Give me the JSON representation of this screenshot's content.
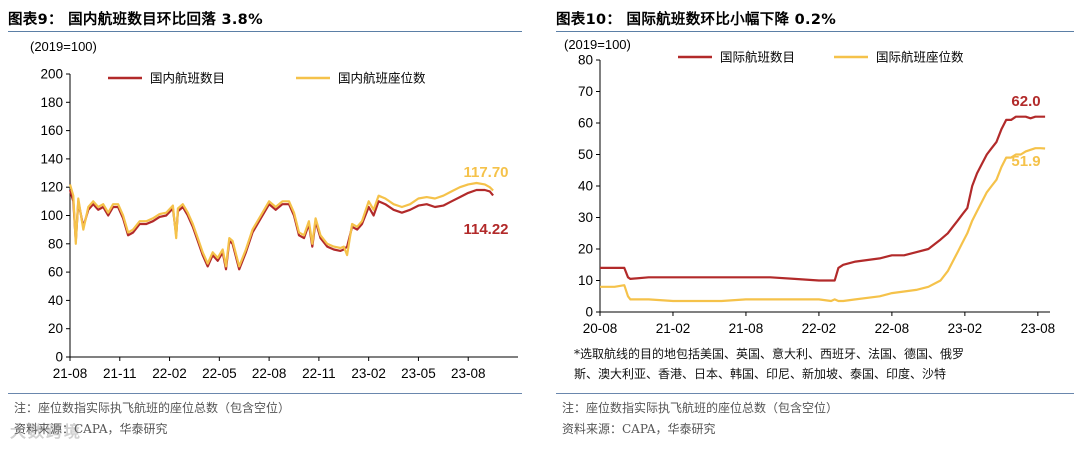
{
  "left": {
    "title": "图表9： 国内航班数目环比回落 3.8%",
    "note": "注：座位数指实际执飞航班的座位总数（包含空位）",
    "source": "资料来源：CAPA，华泰研究"
  },
  "right": {
    "title": "图表10： 国际航班数环比小幅下降 0.2%",
    "footnote_line1": "*选取航线的目的地包括美国、英国、意大利、西班牙、法国、德国、俄罗",
    "footnote_line2": "斯、澳大利亚、香港、日本、韩国、印尼、新加坡、泰国、印度、沙特",
    "note": "注：座位数指实际执飞航班的座位总数（包含空位）",
    "source": "资料来源：CAPA，华泰研究"
  },
  "watermark": "大数跨境",
  "colors": {
    "dark_red": "#b22a2a",
    "yellow": "#f5c24a",
    "rule_blue": "#5b7fa6"
  },
  "chart_data": [
    {
      "type": "line",
      "unit_label": "(2019=100)",
      "ylim": [
        0,
        200
      ],
      "yticks": [
        0,
        20,
        40,
        60,
        80,
        100,
        120,
        140,
        160,
        180,
        200
      ],
      "xlim": [
        0,
        27
      ],
      "x_tick_labels": [
        "21-08",
        "21-11",
        "22-02",
        "22-05",
        "22-08",
        "22-11",
        "23-02",
        "23-05",
        "23-08"
      ],
      "x_tick_positions": [
        0,
        3,
        6,
        9,
        12,
        15,
        18,
        21,
        24
      ],
      "grid": false,
      "legend_position": "top",
      "annotations": [
        {
          "text": "117.70",
          "series": "国内航班座位数"
        },
        {
          "text": "114.22",
          "series": "国内航班数目"
        }
      ],
      "series": [
        {
          "name": "国内航班数目",
          "color": "#b22a2a",
          "x": [
            0,
            0.2,
            0.35,
            0.5,
            0.8,
            1.1,
            1.4,
            1.7,
            2.0,
            2.3,
            2.6,
            2.9,
            3.2,
            3.5,
            3.8,
            4.2,
            4.6,
            5.0,
            5.4,
            5.8,
            6.2,
            6.4,
            6.5,
            6.8,
            7.1,
            7.4,
            7.7,
            8.0,
            8.3,
            8.6,
            8.9,
            9.2,
            9.4,
            9.6,
            9.8,
            10.2,
            10.6,
            11.0,
            11.5,
            12.0,
            12.4,
            12.8,
            13.2,
            13.5,
            13.8,
            14.1,
            14.4,
            14.6,
            14.8,
            15.1,
            15.5,
            15.9,
            16.3,
            16.5,
            16.7,
            17.0,
            17.3,
            17.6,
            18.0,
            18.3,
            18.6,
            19.0,
            19.5,
            20.0,
            20.5,
            21.0,
            21.5,
            22.0,
            22.5,
            23.0,
            23.5,
            24.0,
            24.5,
            25.0,
            25.3,
            25.5
          ],
          "y": [
            118,
            110,
            82,
            110,
            92,
            104,
            108,
            104,
            106,
            100,
            106,
            106,
            98,
            86,
            88,
            94,
            94,
            96,
            99,
            100,
            105,
            86,
            103,
            106,
            100,
            92,
            82,
            72,
            64,
            72,
            68,
            74,
            62,
            82,
            80,
            62,
            74,
            88,
            98,
            108,
            104,
            108,
            108,
            100,
            86,
            84,
            94,
            78,
            96,
            84,
            78,
            76,
            75,
            76,
            78,
            92,
            90,
            94,
            106,
            100,
            110,
            108,
            104,
            102,
            104,
            107,
            108,
            106,
            107,
            110,
            113,
            116,
            118,
            118,
            117,
            114.22
          ]
        },
        {
          "name": "国内航班座位数",
          "color": "#f5c24a",
          "x": [
            0,
            0.2,
            0.35,
            0.5,
            0.8,
            1.1,
            1.4,
            1.7,
            2.0,
            2.3,
            2.6,
            2.9,
            3.2,
            3.5,
            3.8,
            4.2,
            4.6,
            5.0,
            5.4,
            5.8,
            6.2,
            6.4,
            6.5,
            6.8,
            7.1,
            7.4,
            7.7,
            8.0,
            8.3,
            8.6,
            8.9,
            9.2,
            9.4,
            9.6,
            9.8,
            10.2,
            10.6,
            11.0,
            11.5,
            12.0,
            12.4,
            12.8,
            13.2,
            13.5,
            13.8,
            14.1,
            14.4,
            14.6,
            14.8,
            15.1,
            15.5,
            15.9,
            16.3,
            16.5,
            16.7,
            17.0,
            17.3,
            17.6,
            18.0,
            18.3,
            18.6,
            19.0,
            19.5,
            20.0,
            20.5,
            21.0,
            21.5,
            22.0,
            22.5,
            23.0,
            23.5,
            24.0,
            24.5,
            25.0,
            25.3,
            25.5
          ],
          "y": [
            122,
            114,
            80,
            112,
            90,
            106,
            110,
            106,
            108,
            102,
            108,
            108,
            100,
            88,
            90,
            96,
            96,
            98,
            101,
            102,
            107,
            84,
            105,
            108,
            102,
            94,
            84,
            74,
            66,
            74,
            70,
            76,
            64,
            84,
            82,
            64,
            76,
            90,
            100,
            110,
            106,
            110,
            110,
            102,
            88,
            86,
            96,
            80,
            98,
            86,
            80,
            78,
            77,
            78,
            72,
            94,
            92,
            96,
            110,
            104,
            114,
            112,
            108,
            106,
            108,
            112,
            113,
            112,
            114,
            117,
            120,
            122,
            123,
            122,
            120,
            117.7
          ]
        }
      ]
    },
    {
      "type": "line",
      "unit_label": "(2019=100)",
      "ylim": [
        0,
        80
      ],
      "yticks": [
        0,
        10,
        20,
        30,
        40,
        50,
        60,
        70,
        80
      ],
      "xlim": [
        0,
        37
      ],
      "x_tick_labels": [
        "20-08",
        "21-02",
        "21-08",
        "22-02",
        "22-08",
        "23-02",
        "23-08"
      ],
      "x_tick_positions": [
        0,
        6,
        12,
        18,
        24,
        30,
        36
      ],
      "grid": false,
      "legend_position": "top",
      "annotations": [
        {
          "text": "62.0",
          "series": "国际航班数目"
        },
        {
          "text": "51.9",
          "series": "国际航班座位数"
        }
      ],
      "series": [
        {
          "name": "国际航班数目",
          "color": "#b22a2a",
          "x": [
            0,
            1.2,
            2.0,
            2.3,
            2.5,
            4,
            6,
            8,
            10,
            12,
            14,
            16,
            18,
            19,
            19.3,
            19.6,
            20,
            21,
            23,
            24,
            25,
            26,
            27,
            28,
            28.6,
            29,
            29.4,
            29.8,
            30.2,
            30.6,
            31.0,
            31.4,
            31.8,
            32.2,
            32.6,
            33.0,
            33.4,
            33.8,
            34.2,
            34.6,
            35.0,
            35.4,
            35.8,
            36.2,
            36.6
          ],
          "y": [
            14,
            14,
            14,
            11,
            10.5,
            11,
            11,
            11,
            11,
            11,
            11,
            10.5,
            10,
            10,
            10,
            14,
            15,
            16,
            17,
            18,
            18,
            19,
            20,
            23,
            25,
            27,
            29,
            31,
            33,
            40,
            44,
            47,
            50,
            52,
            54,
            58,
            61,
            61,
            62,
            62,
            62,
            61.5,
            62,
            62,
            62.0
          ]
        },
        {
          "name": "国际航班座位数",
          "color": "#f5c24a",
          "x": [
            0,
            1.2,
            2.0,
            2.3,
            2.5,
            4,
            6,
            8,
            10,
            12,
            14,
            16,
            18,
            19,
            19.3,
            19.6,
            20,
            21,
            23,
            24,
            25,
            26,
            27,
            28,
            28.6,
            29,
            29.4,
            29.8,
            30.2,
            30.6,
            31.0,
            31.4,
            31.8,
            32.2,
            32.6,
            33.0,
            33.4,
            33.8,
            34.2,
            34.6,
            35.0,
            35.4,
            35.8,
            36.2,
            36.6
          ],
          "y": [
            8,
            8,
            8.5,
            5,
            4,
            4,
            3.5,
            3.5,
            3.5,
            4,
            4,
            4,
            4,
            3.5,
            4,
            3.5,
            3.5,
            4,
            5,
            6,
            6.5,
            7,
            8,
            10,
            13,
            16,
            19,
            22,
            25,
            29,
            32,
            35,
            38,
            40,
            42,
            46,
            49,
            49,
            50,
            50,
            51,
            51.5,
            52,
            52,
            51.9
          ]
        }
      ]
    }
  ]
}
